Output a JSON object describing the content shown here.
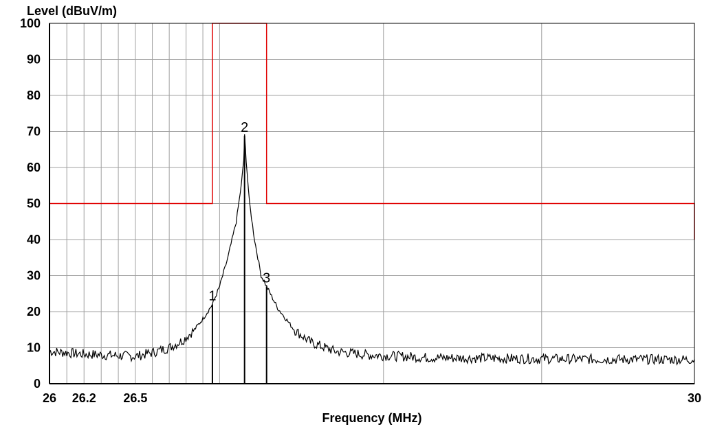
{
  "chart_data": {
    "type": "line",
    "xlabel": "Frequency (MHz)",
    "ylabel": "Level (dBuV/m)",
    "xscale": "log",
    "xlim": [
      26,
      30
    ],
    "ylim": [
      0,
      100
    ],
    "x_tick_labels": [
      "26",
      "26.2",
      "26.5",
      "30"
    ],
    "y_tick_labels": [
      "100",
      "90",
      "80",
      "70",
      "60",
      "50",
      "40",
      "30",
      "20",
      "10",
      "0"
    ],
    "y_ticks": [
      100,
      90,
      80,
      70,
      60,
      50,
      40,
      30,
      20,
      10,
      0
    ],
    "x_gridlines": [
      26.1,
      26.2,
      26.3,
      26.4,
      26.5,
      26.6,
      26.7,
      26.8,
      26.9,
      27,
      28,
      29
    ],
    "grid": true,
    "colors": {
      "trace": "#000000",
      "limit": "#e00000",
      "grid": "#a0a0a0"
    },
    "series": [
      {
        "kind": "limit",
        "color": "#e00000",
        "points": [
          [
            26,
            50
          ],
          [
            26.957,
            50
          ],
          [
            26.957,
            100
          ],
          [
            27.283,
            100
          ],
          [
            27.283,
            50
          ],
          [
            30,
            50
          ],
          [
            30,
            40
          ]
        ]
      },
      {
        "kind": "measurement",
        "color": "#000000",
        "points": [
          [
            26,
            9
          ],
          [
            26.1,
            8.6
          ],
          [
            26.2,
            8.2
          ],
          [
            26.3,
            8.0
          ],
          [
            26.4,
            7.8
          ],
          [
            26.5,
            7.6
          ],
          [
            26.6,
            8.6
          ],
          [
            26.7,
            10
          ],
          [
            26.78,
            12
          ],
          [
            26.85,
            15
          ],
          [
            26.9,
            18
          ],
          [
            26.957,
            22
          ],
          [
            27.0,
            27
          ],
          [
            27.05,
            35
          ],
          [
            27.1,
            45
          ],
          [
            27.13,
            55
          ],
          [
            27.145,
            62
          ],
          [
            27.15,
            68.8
          ],
          [
            27.16,
            62
          ],
          [
            27.18,
            50
          ],
          [
            27.21,
            40
          ],
          [
            27.25,
            30
          ],
          [
            27.283,
            27
          ],
          [
            27.35,
            21
          ],
          [
            27.45,
            15
          ],
          [
            27.55,
            11.5
          ],
          [
            27.7,
            9
          ],
          [
            27.9,
            8
          ],
          [
            28.3,
            7.2
          ],
          [
            28.8,
            7
          ],
          [
            29.3,
            6.8
          ],
          [
            30,
            6.7
          ]
        ]
      }
    ],
    "markers": [
      {
        "label": "1",
        "x": 26.957,
        "y": 22
      },
      {
        "label": "2",
        "x": 27.15,
        "y": 68.8
      },
      {
        "label": "3",
        "x": 27.283,
        "y": 27
      }
    ]
  }
}
